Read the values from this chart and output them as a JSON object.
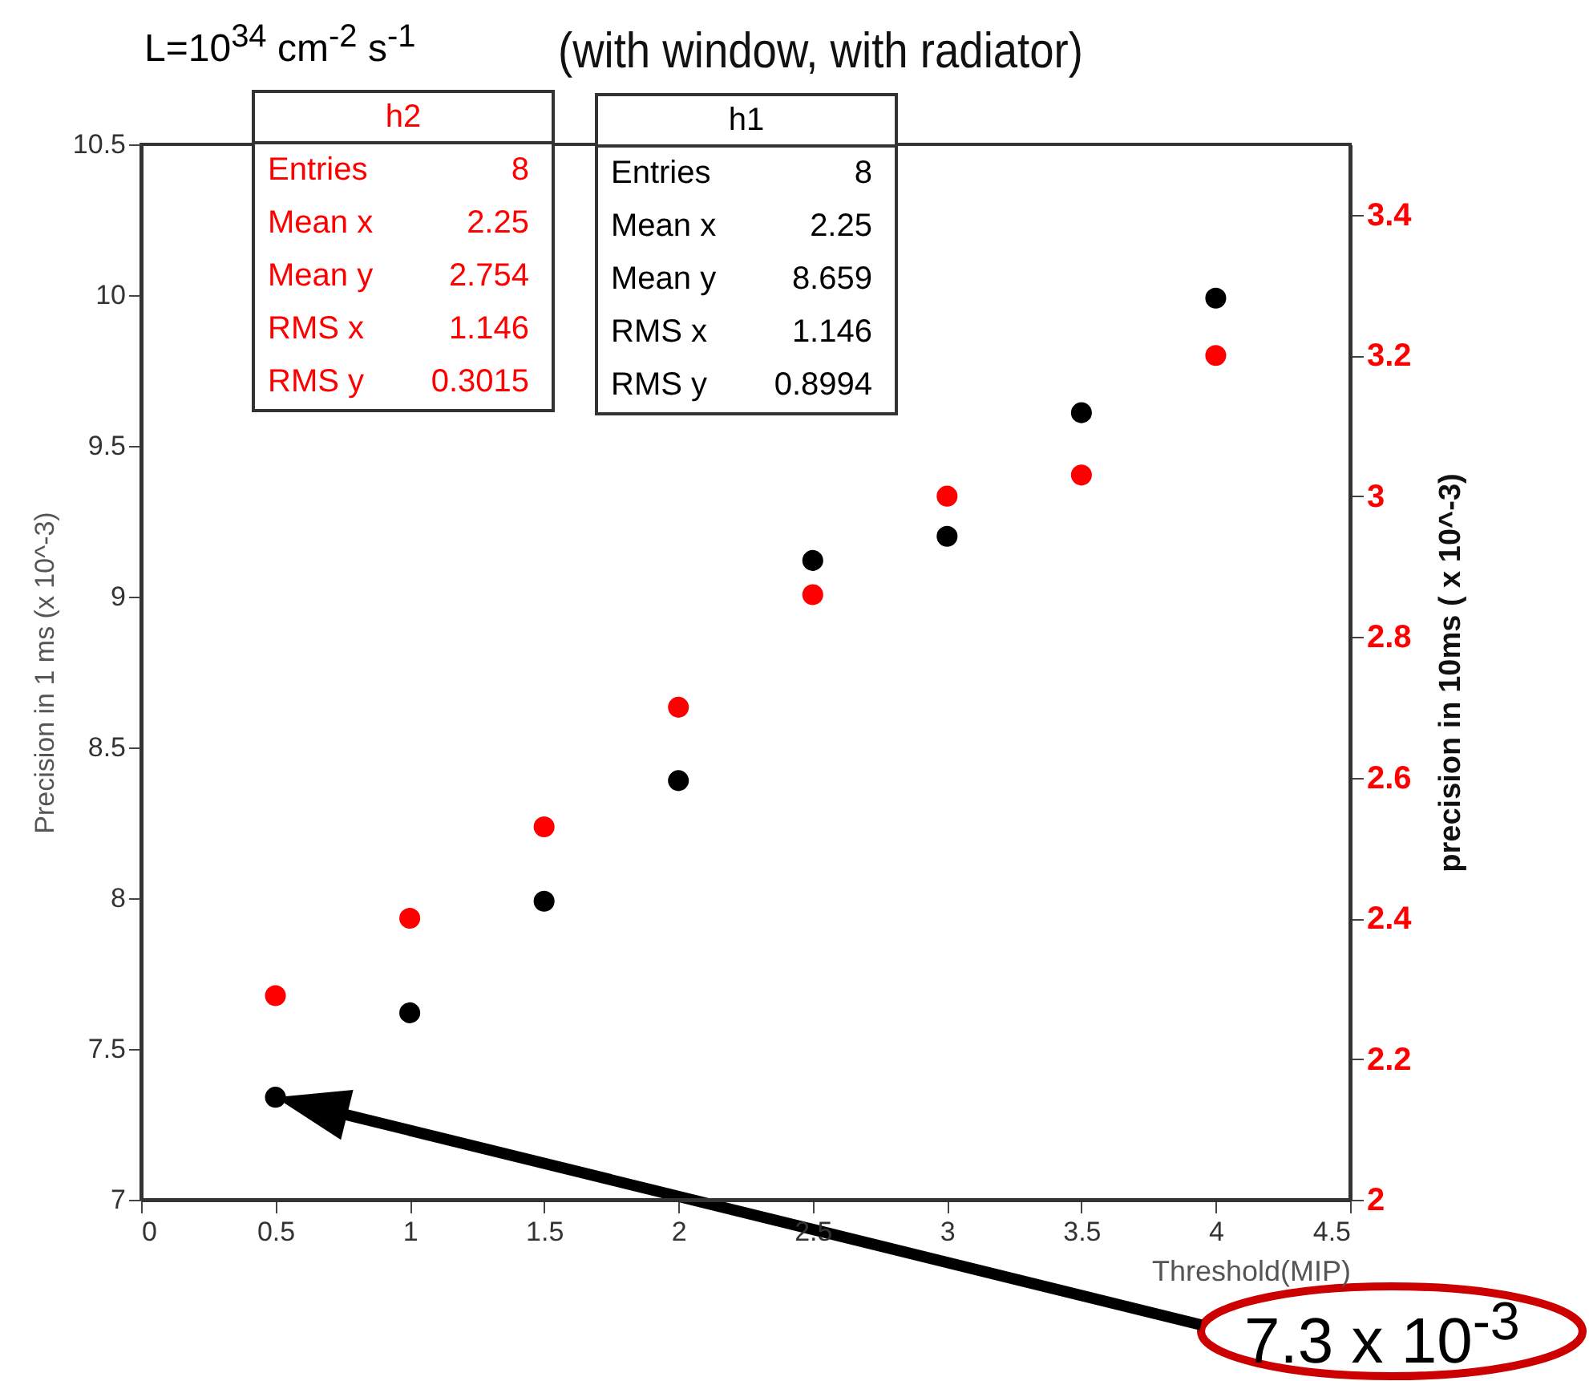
{
  "chart_data": {
    "type": "scatter",
    "title": "(with window, with radiator)",
    "xlabel": "Threshold(MIP)",
    "ylabel": "Precision in 1 ms (x 10^-3)",
    "y2label": "precision in 10ms ( x 10^-3)",
    "x": [
      0.5,
      1,
      1.5,
      2,
      2.5,
      3,
      3.5,
      4
    ],
    "series": [
      {
        "color": "#000000",
        "values": [
          7.34,
          7.62,
          7.99,
          8.39,
          9.12,
          9.2,
          9.61,
          9.99
        ]
      },
      {
        "color": "#ff0000",
        "axis": "y2",
        "values": [
          2.29,
          2.4,
          2.53,
          2.7,
          2.86,
          3.0,
          3.03,
          3.2
        ]
      }
    ],
    "xlim": [
      0,
      4.5
    ],
    "xticks": [
      0,
      0.5,
      1,
      1.5,
      2,
      2.5,
      3,
      3.5,
      4,
      4.5
    ],
    "ylim": [
      7,
      10.5
    ],
    "yticks": [
      7,
      7.5,
      8,
      8.5,
      9,
      9.5,
      10,
      10.5
    ],
    "y2lim": [
      2,
      3.5
    ],
    "y2ticks": [
      2,
      2.2,
      2.4,
      2.6,
      2.8,
      3,
      3.2,
      3.4
    ],
    "marker": "circle",
    "grid": false,
    "annotations": [
      "L=10$^{34}$ cm$^{-2}$ s$^{-1}$",
      "h2\nEntries\t8\nMean x\t2.25\nMean y\t2.754\nRMS x\t1.146\nRMS y\t0.3015",
      "h1\nEntries\t8\nMean x\t2.25\nMean y\t8.659\nRMS x\t1.146\nRMS y\t0.8994",
      "7.3 x 10$^{-3}$"
    ]
  }
}
